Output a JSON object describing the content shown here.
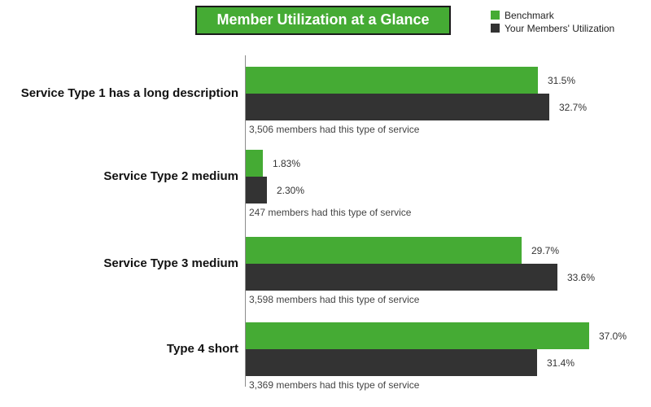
{
  "title": "Member Utilization at a Glance",
  "legend": {
    "items": [
      {
        "label": "Benchmark",
        "color": "#45ab34"
      },
      {
        "label": "Your Members' Utilization",
        "color": "#333333"
      }
    ]
  },
  "chart_data": {
    "type": "bar",
    "orientation": "horizontal",
    "title": "Member Utilization at a Glance",
    "xlabel": "",
    "ylabel": "",
    "xlim": [
      0,
      40
    ],
    "grid": false,
    "legend_position": "top-right",
    "categories": [
      "Service Type 1 has a long description",
      "Service Type 2 medium",
      "Service Type 3 medium",
      "Type 4 short"
    ],
    "series": [
      {
        "name": "Benchmark",
        "color": "#45ab34",
        "values": [
          31.5,
          1.83,
          29.7,
          37.0
        ],
        "labels": [
          "31.5%",
          "1.83%",
          "29.7%",
          "37.0%"
        ]
      },
      {
        "name": "Your Members' Utilization",
        "color": "#333333",
        "values": [
          32.7,
          2.3,
          33.6,
          31.4
        ],
        "labels": [
          "32.7%",
          "2.30%",
          "33.6%",
          "31.4%"
        ]
      }
    ],
    "footnotes": [
      "3,506 members had this type of service",
      "247 members had this type of service",
      "3,598 members had this type of service",
      "3,369 members had this type of service"
    ]
  },
  "colors": {
    "benchmark_green": "#45ab34",
    "members_dark": "#333333",
    "title_bg": "#45ab34",
    "title_border": "#1a1a1a",
    "axis_line": "#8c8c8c"
  }
}
